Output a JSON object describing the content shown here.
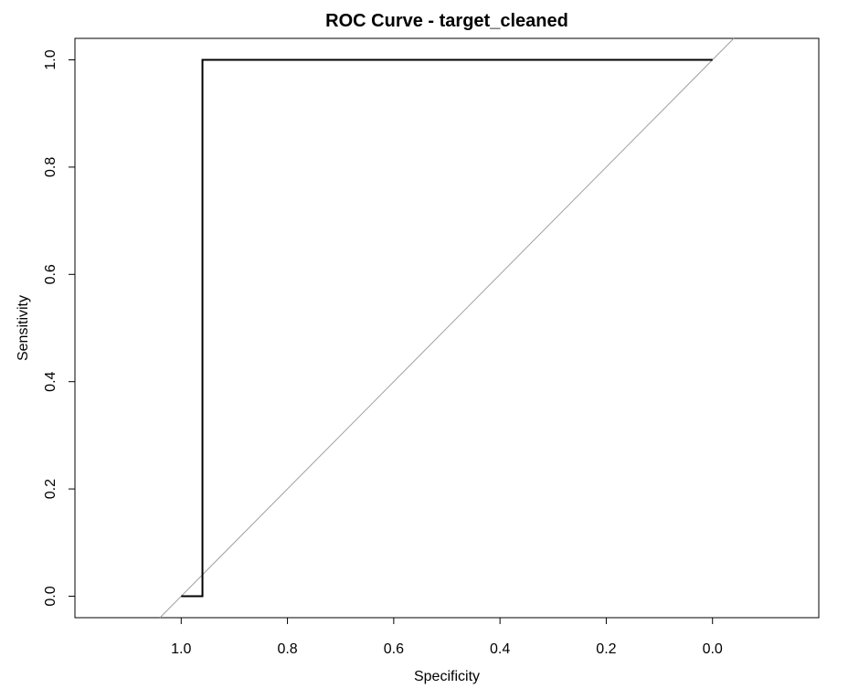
{
  "chart_data": {
    "type": "line",
    "title": "ROC Curve - target_cleaned",
    "xlabel": "Specificity",
    "ylabel": "Sensitivity",
    "x_reversed": true,
    "xlim": [
      1.2,
      -0.2
    ],
    "ylim": [
      -0.04,
      1.04
    ],
    "x_ticks": [
      1.0,
      0.8,
      0.6,
      0.4,
      0.2,
      0.0
    ],
    "x_tick_labels": [
      "1.0",
      "0.8",
      "0.6",
      "0.4",
      "0.2",
      "0.0"
    ],
    "y_ticks": [
      0.0,
      0.2,
      0.4,
      0.6,
      0.8,
      1.0
    ],
    "y_tick_labels": [
      "0.0",
      "0.2",
      "0.4",
      "0.6",
      "0.8",
      "1.0"
    ],
    "grid": false,
    "legend": "none",
    "series": [
      {
        "x": [
          1.0,
          0.96,
          0.96,
          0.0
        ],
        "y": [
          0.0,
          0.0,
          1.0,
          1.0
        ],
        "color": "#000000"
      }
    ],
    "reference_line": {
      "x": [
        1.0,
        0.0
      ],
      "y": [
        0.0,
        1.0
      ],
      "color": "#a0a0a0"
    }
  }
}
